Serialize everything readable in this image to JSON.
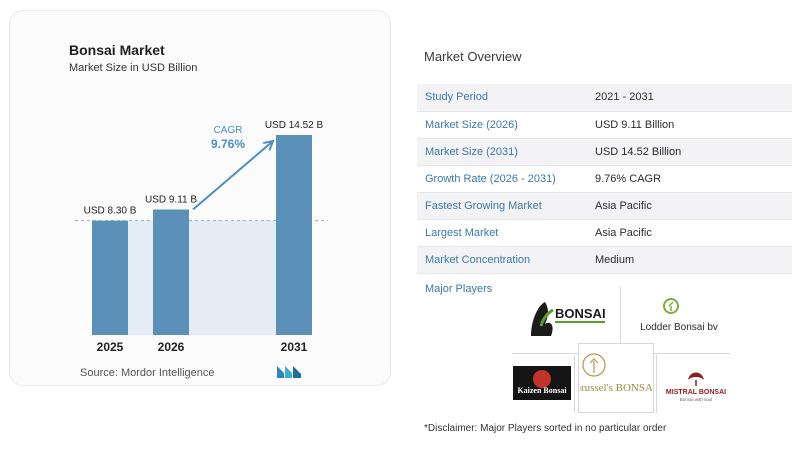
{
  "chart_data": {
    "type": "bar",
    "title": "Bonsai Market",
    "subtitle": "Market Size in USD Billion",
    "categories": [
      "2025",
      "2026",
      "2031"
    ],
    "values": [
      8.3,
      9.11,
      14.52
    ],
    "value_labels": [
      "USD 8.30 B",
      "USD 9.11 B",
      "USD 14.52 B"
    ],
    "cagr_label": "CAGR",
    "cagr_value": "9.76%",
    "bar_color": "#5b90b8",
    "accent_color": "#4a8ec4"
  },
  "source": "Source:  Mordor Intelligence",
  "overview": {
    "title": "Market Overview",
    "rows": [
      {
        "label": "Study Period",
        "value": "2021 - 2031"
      },
      {
        "label": "Market Size (2026)",
        "value": "USD 9.11 Billion"
      },
      {
        "label": "Market Size (2031)",
        "value": "USD 14.52 Billion"
      },
      {
        "label": "Growth Rate (2026 - 2031)",
        "value": "9.76% CAGR"
      },
      {
        "label": "Fastest Growing Market",
        "value": "Asia Pacific"
      },
      {
        "label": "Largest Market",
        "value": "Asia Pacific"
      },
      {
        "label": "Market Concentration",
        "value": "Medium"
      }
    ]
  },
  "players": {
    "label": "Major Players",
    "logos": [
      "BONSAI NETWORK",
      "Lodder Bonsai bv",
      "Kaizen Bonsai",
      "brussel's BONSAI",
      "MISTRAL BONSAI"
    ],
    "logo_subtext": [
      "Bonsai with soul"
    ]
  },
  "disclaimer": "*Disclaimer: Major Players sorted in no particular order"
}
